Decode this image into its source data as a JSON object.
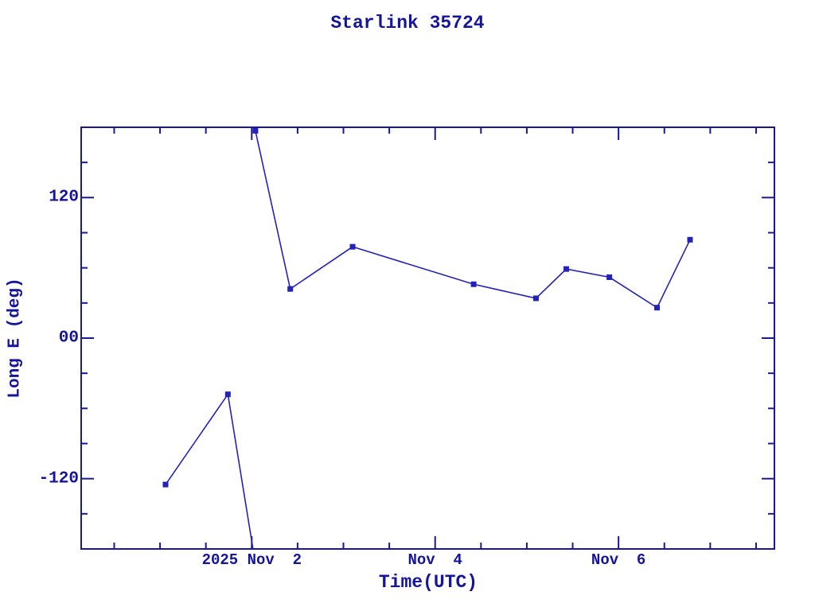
{
  "title": "Starlink 35724",
  "chart_data": {
    "type": "line",
    "title": "Starlink 35724",
    "xlabel": "Time(UTC)",
    "ylabel": "Long E (deg)",
    "grid": false,
    "legend": false,
    "x_axis": {
      "unit": "days relative to 2025 Nov 2 00:00 UTC",
      "range": [
        -1.86,
        5.7
      ],
      "minor_tick_interval": 0.5,
      "major_ticks": [
        {
          "t": 0,
          "label": "2025 Nov  2"
        },
        {
          "t": 2,
          "label": "Nov  4"
        },
        {
          "t": 4,
          "label": "Nov  6"
        }
      ]
    },
    "y_axis": {
      "range": [
        -180,
        180
      ],
      "minor_tick_interval": 30,
      "major_ticks": [
        {
          "v": 120,
          "label": "120"
        },
        {
          "v": 0,
          "label": "00"
        },
        {
          "v": -120,
          "label": "-120"
        }
      ]
    },
    "series": [
      {
        "name": "Long E",
        "marker": "filled-square",
        "points": [
          {
            "t": -0.94,
            "v": -125
          },
          {
            "t": -0.26,
            "v": -48
          },
          {
            "t": 0.04,
            "v": 177
          },
          {
            "t": 0.42,
            "v": 42
          },
          {
            "t": 1.1,
            "v": 78
          },
          {
            "t": 2.42,
            "v": 46
          },
          {
            "t": 3.1,
            "v": 34
          },
          {
            "t": 3.43,
            "v": 59
          },
          {
            "t": 3.9,
            "v": 52
          },
          {
            "t": 4.42,
            "v": 26
          },
          {
            "t": 4.78,
            "v": 84
          }
        ],
        "wrap_crossings": [
          {
            "t": 0.014,
            "after_point_index": 1,
            "direction": "bottom-to-top"
          }
        ]
      }
    ],
    "colors": {
      "background": "#ffffff",
      "axis": "#191996",
      "line": "#2323b8",
      "marker": "#2323b8",
      "text": "#15159b"
    }
  }
}
